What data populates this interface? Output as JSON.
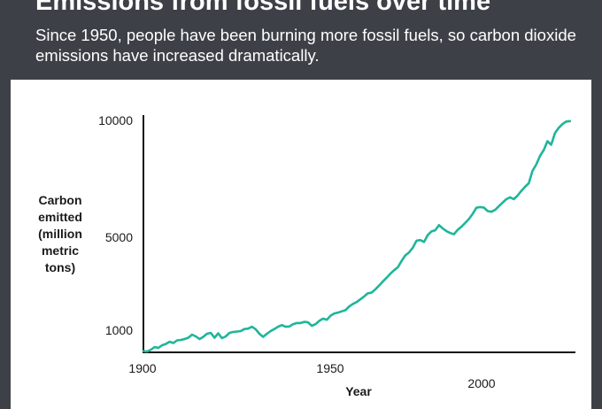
{
  "header": {
    "title": "Emissions from fossil fuels over time",
    "subtitle": "Since 1950, people have been burning more fossil fuels, so carbon dioxide emissions have increased dramatically."
  },
  "colors": {
    "background": "#3d4147",
    "panel": "#ffffff",
    "line": "#1fb59b",
    "axis": "#111111"
  },
  "chart_data": {
    "type": "line",
    "title": "",
    "xlabel": "Year",
    "ylabel_lines": [
      "Carbon",
      "emitted",
      "(million",
      "metric",
      "tons)"
    ],
    "y_tick_labels": [
      "10000",
      "5000",
      "1000"
    ],
    "x_tick_labels": [
      "1900",
      "1950",
      "2000"
    ],
    "grid": false,
    "legend": "none",
    "series": [
      {
        "x": [
          1900,
          1901,
          1902,
          1903,
          1904,
          1905,
          1906,
          1907,
          1908,
          1909,
          1910,
          1911,
          1912,
          1913,
          1914,
          1915,
          1916,
          1917,
          1918,
          1919,
          1920,
          1921,
          1922,
          1923,
          1924,
          1925,
          1926,
          1927,
          1928,
          1929,
          1930,
          1931,
          1932,
          1933,
          1934,
          1935,
          1936,
          1937,
          1938,
          1939,
          1940,
          1941,
          1942,
          1943,
          1944,
          1945,
          1946,
          1947,
          1948,
          1949,
          1950,
          1951,
          1952,
          1953,
          1954,
          1955,
          1956,
          1957,
          1958,
          1959,
          1960,
          1961,
          1962,
          1963,
          1964,
          1965,
          1966,
          1967,
          1968,
          1969,
          1970,
          1971,
          1972,
          1973,
          1974,
          1975,
          1976,
          1977,
          1978,
          1979,
          1980,
          1981,
          1982,
          1983,
          1984,
          1985,
          1986,
          1987,
          1988,
          1989,
          1990,
          1991,
          1992,
          1993,
          1994,
          1995,
          1996,
          1997,
          1998,
          1999,
          2000,
          2001,
          2002,
          2003,
          2004,
          2005,
          2006,
          2007,
          2008,
          2009,
          2010,
          2011,
          2012,
          2013,
          2014
        ],
        "y": [
          530,
          520,
          560,
          620,
          600,
          660,
          690,
          740,
          710,
          770,
          780,
          800,
          830,
          900,
          860,
          800,
          850,
          920,
          940,
          830,
          930,
          820,
          860,
          940,
          960,
          970,
          980,
          1050,
          1070,
          1150,
          1040,
          920,
          850,
          920,
          980,
          1050,
          1150,
          1220,
          1150,
          1160,
          1260,
          1310,
          1310,
          1360,
          1340,
          1190,
          1260,
          1400,
          1500,
          1450,
          1620,
          1720,
          1760,
          1810,
          1860,
          2020,
          2130,
          2210,
          2330,
          2450,
          2590,
          2620,
          2760,
          2920,
          3100,
          3260,
          3430,
          3580,
          3710,
          3980,
          4220,
          4350,
          4550,
          4850,
          4880,
          4800,
          5100,
          5250,
          5300,
          5520,
          5380,
          5260,
          5180,
          5130,
          5320,
          5450,
          5610,
          5780,
          6000,
          6260,
          6290,
          6270,
          6120,
          6090,
          6170,
          6330,
          6480,
          6630,
          6710,
          6630,
          6780,
          6980,
          7160,
          7310,
          7840,
          8110,
          8480,
          8730,
          9110,
          8960,
          9460,
          9680,
          9840,
          9950,
          9970
        ]
      }
    ]
  }
}
